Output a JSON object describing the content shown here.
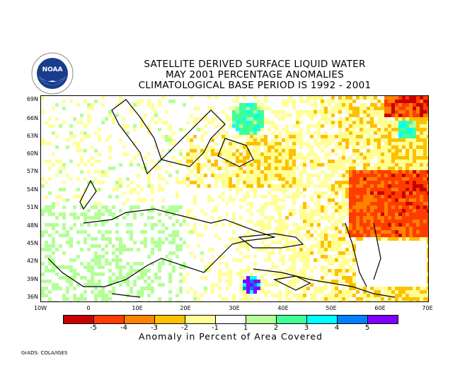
{
  "title": [
    "SATELLITE DERIVED SURFACE LIQUID WATER",
    "MAY 2001 PERCENTAGE ANOMALIES",
    "CLIMATOLOGICAL BASE PERIOD IS 1992 - 2001"
  ],
  "logo_text": "NOAA",
  "lat_labels": [
    "69N",
    "66N",
    "63N",
    "60N",
    "57N",
    "54N",
    "51N",
    "48N",
    "45N",
    "42N",
    "39N",
    "36N"
  ],
  "lon_labels": [
    "10W",
    "0",
    "10E",
    "20E",
    "30E",
    "40E",
    "50E",
    "60E",
    "70E"
  ],
  "colorbar": {
    "colors": [
      "#c80000",
      "#ff3c00",
      "#ff8200",
      "#ffc000",
      "#ffff96",
      "#ffffff",
      "#b4ff96",
      "#40ff96",
      "#00ffff",
      "#0080ff",
      "#8000ff"
    ],
    "labels": [
      "-5",
      "-4",
      "-3",
      "-2",
      "-1",
      "1",
      "2",
      "3",
      "4",
      "5"
    ],
    "title": "Anomaly in Percent of Area Covered"
  },
  "footer": "GrADS: COLA/IGES"
}
